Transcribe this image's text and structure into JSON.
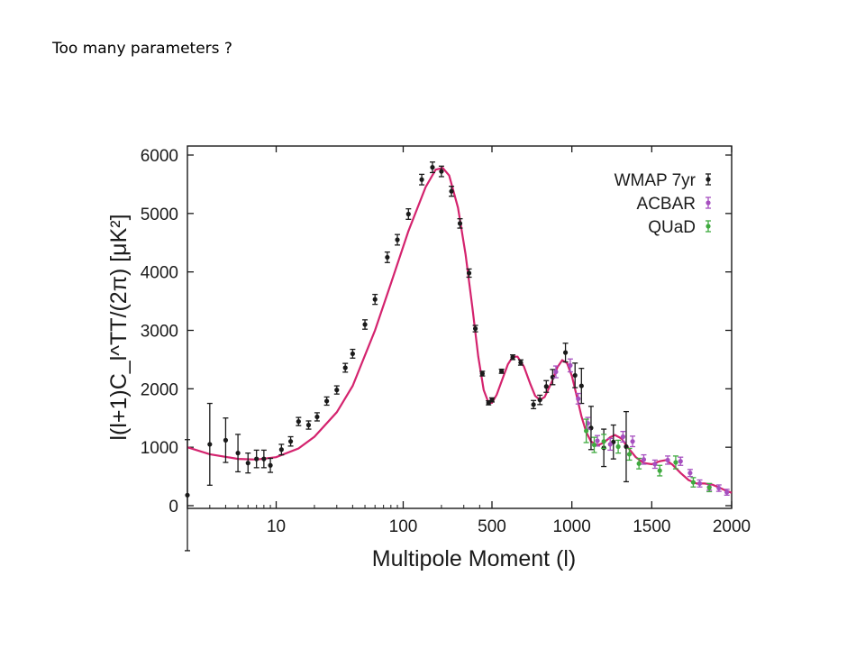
{
  "slide": {
    "title": "Too many parameters ?"
  },
  "chart_data": {
    "type": "scatter",
    "title": "",
    "xlabel": "Multipole Moment (l)",
    "ylabel": "l(l+1)C_l^TT/(2π) [μK²]",
    "xlim": [
      2,
      2000
    ],
    "ylim": [
      0,
      6000
    ],
    "x_scale": "log below 500, linear above 500",
    "grid": false,
    "legend_position": "top-right",
    "x_ticks": [
      10,
      100,
      500,
      1000,
      1500,
      2000
    ],
    "y_ticks": [
      0,
      1000,
      2000,
      3000,
      4000,
      5000,
      6000
    ],
    "series": [
      {
        "name": "WMAP 7yr",
        "color": "#1a1a1a",
        "points": [
          {
            "x": 2,
            "y": 180,
            "err": 950
          },
          {
            "x": 3,
            "y": 1050,
            "err": 700
          },
          {
            "x": 4,
            "y": 1120,
            "err": 380
          },
          {
            "x": 5,
            "y": 900,
            "err": 320
          },
          {
            "x": 6,
            "y": 730,
            "err": 170
          },
          {
            "x": 7,
            "y": 800,
            "err": 150
          },
          {
            "x": 8,
            "y": 800,
            "err": 150
          },
          {
            "x": 9,
            "y": 690,
            "err": 120
          },
          {
            "x": 11,
            "y": 960,
            "err": 90
          },
          {
            "x": 13,
            "y": 1100,
            "err": 80
          },
          {
            "x": 15,
            "y": 1440,
            "err": 70
          },
          {
            "x": 18,
            "y": 1380,
            "err": 70
          },
          {
            "x": 21,
            "y": 1520,
            "err": 70
          },
          {
            "x": 25,
            "y": 1790,
            "err": 70
          },
          {
            "x": 30,
            "y": 1980,
            "err": 70
          },
          {
            "x": 35,
            "y": 2360,
            "err": 75
          },
          {
            "x": 40,
            "y": 2600,
            "err": 75
          },
          {
            "x": 50,
            "y": 3100,
            "err": 80
          },
          {
            "x": 60,
            "y": 3530,
            "err": 85
          },
          {
            "x": 75,
            "y": 4250,
            "err": 90
          },
          {
            "x": 90,
            "y": 4550,
            "err": 90
          },
          {
            "x": 110,
            "y": 4990,
            "err": 90
          },
          {
            "x": 140,
            "y": 5580,
            "err": 90
          },
          {
            "x": 170,
            "y": 5790,
            "err": 90
          },
          {
            "x": 200,
            "y": 5720,
            "err": 90
          },
          {
            "x": 240,
            "y": 5380,
            "err": 85
          },
          {
            "x": 280,
            "y": 4830,
            "err": 80
          },
          {
            "x": 330,
            "y": 3980,
            "err": 70
          },
          {
            "x": 370,
            "y": 3030,
            "err": 55
          },
          {
            "x": 420,
            "y": 2260,
            "err": 40
          },
          {
            "x": 470,
            "y": 1760,
            "err": 35
          },
          {
            "x": 500,
            "y": 1810,
            "err": 35
          },
          {
            "x": 560,
            "y": 2300,
            "err": 35
          },
          {
            "x": 630,
            "y": 2540,
            "err": 40
          },
          {
            "x": 680,
            "y": 2450,
            "err": 45
          },
          {
            "x": 760,
            "y": 1730,
            "err": 70
          },
          {
            "x": 800,
            "y": 1810,
            "err": 80
          },
          {
            "x": 840,
            "y": 2040,
            "err": 100
          },
          {
            "x": 880,
            "y": 2200,
            "err": 130
          },
          {
            "x": 960,
            "y": 2620,
            "err": 160
          },
          {
            "x": 1020,
            "y": 2230,
            "err": 210
          },
          {
            "x": 1060,
            "y": 2050,
            "err": 300
          },
          {
            "x": 1120,
            "y": 1330,
            "err": 370
          },
          {
            "x": 1200,
            "y": 990,
            "err": 320
          },
          {
            "x": 1260,
            "y": 1090,
            "err": 290
          },
          {
            "x": 1340,
            "y": 1010,
            "err": 600
          }
        ]
      },
      {
        "name": "ACBAR",
        "color": "#a64fbf",
        "points": [
          {
            "x": 900,
            "y": 2290,
            "err": 100
          },
          {
            "x": 990,
            "y": 2400,
            "err": 110
          },
          {
            "x": 1040,
            "y": 1830,
            "err": 90
          },
          {
            "x": 1100,
            "y": 1410,
            "err": 100
          },
          {
            "x": 1160,
            "y": 1110,
            "err": 90
          },
          {
            "x": 1240,
            "y": 1050,
            "err": 100
          },
          {
            "x": 1320,
            "y": 1180,
            "err": 90
          },
          {
            "x": 1380,
            "y": 1100,
            "err": 90
          },
          {
            "x": 1450,
            "y": 790,
            "err": 80
          },
          {
            "x": 1520,
            "y": 710,
            "err": 70
          },
          {
            "x": 1600,
            "y": 780,
            "err": 70
          },
          {
            "x": 1680,
            "y": 760,
            "err": 70
          },
          {
            "x": 1740,
            "y": 560,
            "err": 60
          },
          {
            "x": 1800,
            "y": 380,
            "err": 60
          },
          {
            "x": 1860,
            "y": 320,
            "err": 55
          },
          {
            "x": 1920,
            "y": 300,
            "err": 55
          },
          {
            "x": 1970,
            "y": 230,
            "err": 50
          }
        ]
      },
      {
        "name": "QUaD",
        "color": "#3faa3f",
        "points": [
          {
            "x": 1090,
            "y": 1280,
            "err": 200
          },
          {
            "x": 1140,
            "y": 1040,
            "err": 130
          },
          {
            "x": 1200,
            "y": 1100,
            "err": 120
          },
          {
            "x": 1290,
            "y": 1010,
            "err": 110
          },
          {
            "x": 1360,
            "y": 880,
            "err": 100
          },
          {
            "x": 1420,
            "y": 720,
            "err": 90
          },
          {
            "x": 1550,
            "y": 600,
            "err": 90
          },
          {
            "x": 1650,
            "y": 740,
            "err": 110
          },
          {
            "x": 1760,
            "y": 400,
            "err": 80
          },
          {
            "x": 1860,
            "y": 310,
            "err": 70
          }
        ]
      }
    ],
    "model_curve": {
      "color": "#d4236e",
      "points": [
        [
          2,
          1000
        ],
        [
          3,
          880
        ],
        [
          5,
          800
        ],
        [
          7,
          790
        ],
        [
          10,
          830
        ],
        [
          15,
          980
        ],
        [
          20,
          1180
        ],
        [
          30,
          1600
        ],
        [
          40,
          2050
        ],
        [
          60,
          3000
        ],
        [
          80,
          3800
        ],
        [
          110,
          4700
        ],
        [
          150,
          5450
        ],
        [
          180,
          5750
        ],
        [
          205,
          5780
        ],
        [
          230,
          5650
        ],
        [
          270,
          5100
        ],
        [
          310,
          4300
        ],
        [
          350,
          3400
        ],
        [
          390,
          2550
        ],
        [
          430,
          1980
        ],
        [
          470,
          1760
        ],
        [
          500,
          1760
        ],
        [
          530,
          1900
        ],
        [
          570,
          2200
        ],
        [
          600,
          2420
        ],
        [
          630,
          2550
        ],
        [
          660,
          2550
        ],
        [
          700,
          2380
        ],
        [
          740,
          2080
        ],
        [
          770,
          1880
        ],
        [
          800,
          1810
        ],
        [
          830,
          1860
        ],
        [
          870,
          2090
        ],
        [
          910,
          2370
        ],
        [
          940,
          2490
        ],
        [
          970,
          2440
        ],
        [
          1000,
          2220
        ],
        [
          1030,
          1880
        ],
        [
          1060,
          1530
        ],
        [
          1090,
          1260
        ],
        [
          1120,
          1100
        ],
        [
          1160,
          1030
        ],
        [
          1200,
          1080
        ],
        [
          1240,
          1170
        ],
        [
          1270,
          1210
        ],
        [
          1310,
          1150
        ],
        [
          1350,
          1000
        ],
        [
          1400,
          830
        ],
        [
          1450,
          730
        ],
        [
          1500,
          710
        ],
        [
          1550,
          760
        ],
        [
          1590,
          780
        ],
        [
          1630,
          700
        ],
        [
          1680,
          560
        ],
        [
          1730,
          440
        ],
        [
          1780,
          380
        ],
        [
          1830,
          380
        ],
        [
          1880,
          360
        ],
        [
          1930,
          300
        ],
        [
          1970,
          250
        ],
        [
          2000,
          220
        ]
      ]
    }
  }
}
